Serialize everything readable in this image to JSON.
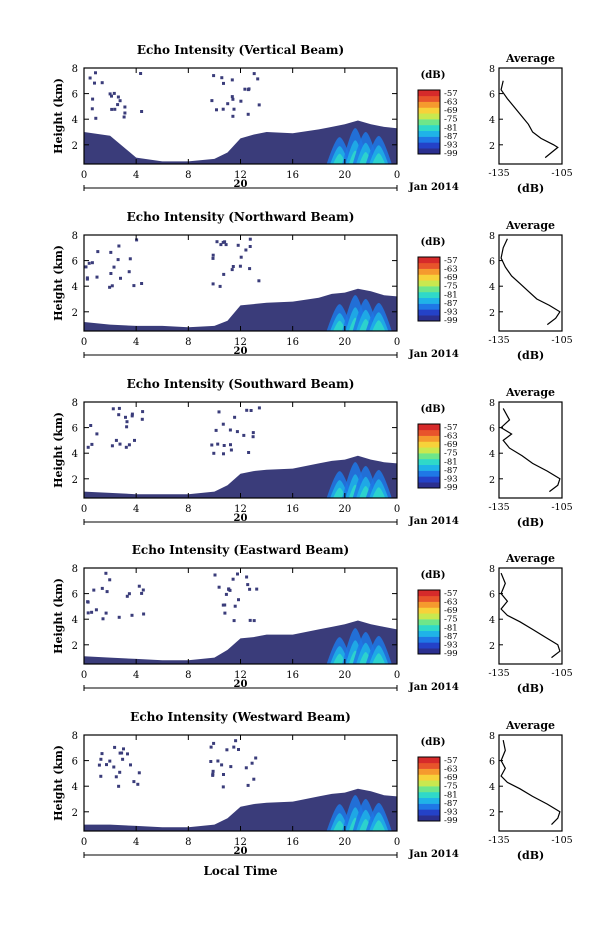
{
  "colorbar": {
    "unit": "(dB)",
    "ticks": [
      "-57",
      "-63",
      "-69",
      "-75",
      "-81",
      "-87",
      "-93",
      "-99"
    ],
    "colors": [
      "#2b2f8f",
      "#2442c8",
      "#1f78e6",
      "#1fb3e8",
      "#2fd9c9",
      "#6ee68a",
      "#c9e84f",
      "#f7d23a",
      "#f59a2e",
      "#e8542b",
      "#d62a2a"
    ]
  },
  "colors": {
    "background_fill": "#3a3c7a",
    "line": "#000000"
  },
  "panels": [
    {
      "title": "Echo Intensity (Vertical Beam)",
      "ylabel": "Height (km)",
      "yticks": [
        "2",
        "4",
        "6",
        "8"
      ],
      "xticks": [
        "0",
        "4",
        "8",
        "12",
        "16",
        "20",
        "0"
      ],
      "date_label": "20",
      "month_label": "Jan 2014",
      "average": {
        "title": "Average",
        "xlabel": "(dB)",
        "xticks": [
          "-135",
          "-105"
        ],
        "yticks": [
          "2",
          "4",
          "6",
          "8"
        ]
      }
    },
    {
      "title": "Echo Intensity (Northward Beam)",
      "ylabel": "Height (km)",
      "yticks": [
        "2",
        "4",
        "6",
        "8"
      ],
      "xticks": [
        "0",
        "4",
        "8",
        "12",
        "16",
        "20",
        "0"
      ],
      "date_label": "20",
      "month_label": "Jan 2014",
      "average": {
        "title": "Average",
        "xlabel": "(dB)",
        "xticks": [
          "-135",
          "-105"
        ],
        "yticks": [
          "2",
          "4",
          "6",
          "8"
        ]
      }
    },
    {
      "title": "Echo Intensity (Southward Beam)",
      "ylabel": "Height (km)",
      "yticks": [
        "2",
        "4",
        "6",
        "8"
      ],
      "xticks": [
        "0",
        "4",
        "8",
        "12",
        "16",
        "20",
        "0"
      ],
      "date_label": "20",
      "month_label": "Jan 2014",
      "average": {
        "title": "Average",
        "xlabel": "(dB)",
        "xticks": [
          "-135",
          "-105"
        ],
        "yticks": [
          "2",
          "4",
          "6",
          "8"
        ]
      }
    },
    {
      "title": "Echo Intensity (Eastward Beam)",
      "ylabel": "Height (km)",
      "yticks": [
        "2",
        "4",
        "6",
        "8"
      ],
      "xticks": [
        "0",
        "4",
        "8",
        "12",
        "16",
        "20",
        "0"
      ],
      "date_label": "20",
      "month_label": "Jan 2014",
      "average": {
        "title": "Average",
        "xlabel": "(dB)",
        "xticks": [
          "-135",
          "-105"
        ],
        "yticks": [
          "2",
          "4",
          "6",
          "8"
        ]
      }
    },
    {
      "title": "Echo Intensity (Westward Beam)",
      "ylabel": "Height (km)",
      "yticks": [
        "2",
        "4",
        "6",
        "8"
      ],
      "xticks": [
        "0",
        "4",
        "8",
        "12",
        "16",
        "20",
        "0"
      ],
      "date_label": "20",
      "month_label": "Jan 2014",
      "average": {
        "title": "Average",
        "xlabel": "(dB)",
        "xticks": [
          "-135",
          "-105"
        ],
        "yticks": [
          "2",
          "4",
          "6",
          "8"
        ]
      }
    }
  ],
  "xlabel": "Local Time",
  "chart_data": [
    {
      "type": "heatmap",
      "title": "Echo Intensity (Vertical Beam)",
      "xlabel": "Local Time",
      "ylabel": "Height (km)",
      "xlim": [
        0,
        24
      ],
      "ylim": [
        0.5,
        8
      ],
      "date": "20 Jan 2014",
      "colorbar_range_dB": [
        -99,
        -57
      ],
      "echo_top_km": [
        [
          0,
          3.0
        ],
        [
          2,
          2.7
        ],
        [
          4,
          1.0
        ],
        [
          6,
          0.7
        ],
        [
          8,
          0.7
        ],
        [
          10,
          0.9
        ],
        [
          11,
          1.4
        ],
        [
          12,
          2.5
        ],
        [
          13,
          2.8
        ],
        [
          14,
          3.0
        ],
        [
          16,
          2.9
        ],
        [
          18,
          3.2
        ],
        [
          19,
          3.4
        ],
        [
          20,
          3.6
        ],
        [
          21,
          3.9
        ],
        [
          22,
          3.6
        ],
        [
          23,
          3.4
        ],
        [
          24,
          3.3
        ]
      ]
    },
    {
      "type": "line",
      "title": "Average",
      "xlabel": "(dB)",
      "xlim": [
        -135,
        -105
      ],
      "ylim": [
        0.5,
        8
      ],
      "x": [
        -113,
        -110,
        -107,
        -109,
        -115,
        -119,
        -121,
        -124,
        -128,
        -131,
        -134,
        -133
      ],
      "y": [
        1.0,
        1.4,
        1.8,
        2.0,
        2.5,
        3.0,
        3.6,
        4.2,
        5.0,
        5.6,
        6.3,
        7.0
      ]
    },
    {
      "type": "heatmap",
      "title": "Echo Intensity (Northward Beam)",
      "xlabel": "Local Time",
      "ylabel": "Height (km)",
      "xlim": [
        0,
        24
      ],
      "ylim": [
        0.5,
        8
      ],
      "date": "20 Jan 2014",
      "colorbar_range_dB": [
        -99,
        -57
      ],
      "echo_top_km": [
        [
          0,
          1.2
        ],
        [
          2,
          1.0
        ],
        [
          4,
          0.9
        ],
        [
          6,
          0.9
        ],
        [
          8,
          0.8
        ],
        [
          10,
          0.9
        ],
        [
          11,
          1.3
        ],
        [
          12,
          2.5
        ],
        [
          13,
          2.6
        ],
        [
          14,
          2.7
        ],
        [
          16,
          2.8
        ],
        [
          18,
          3.1
        ],
        [
          19,
          3.4
        ],
        [
          20,
          3.5
        ],
        [
          21,
          3.8
        ],
        [
          22,
          3.6
        ],
        [
          23,
          3.3
        ],
        [
          24,
          3.2
        ]
      ]
    },
    {
      "type": "line",
      "title": "Average",
      "xlabel": "(dB)",
      "xlim": [
        -135,
        -105
      ],
      "ylim": [
        0.5,
        8
      ],
      "x": [
        -112,
        -108,
        -106,
        -111,
        -117,
        -121,
        -125,
        -129,
        -132,
        -134,
        -133,
        -131
      ],
      "y": [
        1.0,
        1.5,
        2.0,
        2.5,
        3.0,
        3.6,
        4.2,
        4.8,
        5.5,
        6.2,
        7.0,
        7.7
      ]
    },
    {
      "type": "heatmap",
      "title": "Echo Intensity (Southward Beam)",
      "xlabel": "Local Time",
      "ylabel": "Height (km)",
      "xlim": [
        0,
        24
      ],
      "ylim": [
        0.5,
        8
      ],
      "date": "20 Jan 2014",
      "colorbar_range_dB": [
        -99,
        -57
      ],
      "echo_top_km": [
        [
          0,
          1.0
        ],
        [
          2,
          0.9
        ],
        [
          4,
          0.8
        ],
        [
          6,
          0.8
        ],
        [
          8,
          0.8
        ],
        [
          10,
          1.0
        ],
        [
          11,
          1.5
        ],
        [
          12,
          2.4
        ],
        [
          13,
          2.6
        ],
        [
          14,
          2.7
        ],
        [
          16,
          2.8
        ],
        [
          18,
          3.2
        ],
        [
          19,
          3.4
        ],
        [
          20,
          3.5
        ],
        [
          21,
          3.8
        ],
        [
          22,
          3.5
        ],
        [
          23,
          3.3
        ],
        [
          24,
          3.2
        ]
      ]
    },
    {
      "type": "line",
      "title": "Average",
      "xlabel": "(dB)",
      "xlim": [
        -135,
        -105
      ],
      "ylim": [
        0.5,
        8
      ],
      "x": [
        -111,
        -107,
        -106,
        -112,
        -119,
        -124,
        -130,
        -133,
        -129,
        -134,
        -130,
        -133
      ],
      "y": [
        1.0,
        1.5,
        2.0,
        2.6,
        3.2,
        3.8,
        4.4,
        5.0,
        5.5,
        6.0,
        6.6,
        7.5
      ]
    },
    {
      "type": "heatmap",
      "title": "Echo Intensity (Eastward Beam)",
      "xlabel": "Local Time",
      "ylabel": "Height (km)",
      "xlim": [
        0,
        24
      ],
      "ylim": [
        0.5,
        8
      ],
      "date": "20 Jan 2014",
      "colorbar_range_dB": [
        -99,
        -57
      ],
      "echo_top_km": [
        [
          0,
          1.1
        ],
        [
          2,
          1.0
        ],
        [
          4,
          0.9
        ],
        [
          6,
          0.8
        ],
        [
          8,
          0.8
        ],
        [
          10,
          1.0
        ],
        [
          11,
          1.6
        ],
        [
          12,
          2.5
        ],
        [
          13,
          2.6
        ],
        [
          14,
          2.8
        ],
        [
          16,
          2.8
        ],
        [
          18,
          3.2
        ],
        [
          19,
          3.4
        ],
        [
          20,
          3.6
        ],
        [
          21,
          3.9
        ],
        [
          22,
          3.6
        ],
        [
          23,
          3.4
        ],
        [
          24,
          3.2
        ]
      ]
    },
    {
      "type": "line",
      "title": "Average",
      "xlabel": "(dB)",
      "xlim": [
        -135,
        -105
      ],
      "ylim": [
        0.5,
        8
      ],
      "x": [
        -110,
        -106,
        -107,
        -113,
        -119,
        -125,
        -131,
        -134,
        -131,
        -134,
        -132,
        -134
      ],
      "y": [
        1.0,
        1.5,
        2.0,
        2.6,
        3.2,
        3.8,
        4.3,
        4.8,
        5.4,
        6.0,
        6.8,
        7.6
      ]
    },
    {
      "type": "heatmap",
      "title": "Echo Intensity (Westward Beam)",
      "xlabel": "Local Time",
      "ylabel": "Height (km)",
      "xlim": [
        0,
        24
      ],
      "ylim": [
        0.5,
        8
      ],
      "date": "20 Jan 2014",
      "colorbar_range_dB": [
        -99,
        -57
      ],
      "echo_top_km": [
        [
          0,
          1.0
        ],
        [
          2,
          1.0
        ],
        [
          4,
          0.9
        ],
        [
          6,
          0.8
        ],
        [
          8,
          0.8
        ],
        [
          10,
          1.0
        ],
        [
          11,
          1.5
        ],
        [
          12,
          2.4
        ],
        [
          13,
          2.6
        ],
        [
          14,
          2.7
        ],
        [
          16,
          2.8
        ],
        [
          18,
          3.2
        ],
        [
          19,
          3.4
        ],
        [
          20,
          3.5
        ],
        [
          21,
          3.8
        ],
        [
          22,
          3.6
        ],
        [
          23,
          3.3
        ],
        [
          24,
          3.2
        ]
      ]
    },
    {
      "type": "line",
      "title": "Average",
      "xlabel": "(dB)",
      "xlim": [
        -135,
        -105
      ],
      "ylim": [
        0.5,
        8
      ],
      "x": [
        -110,
        -107,
        -106,
        -112,
        -119,
        -125,
        -131,
        -134,
        -132,
        -134,
        -132,
        -133
      ],
      "y": [
        1.0,
        1.5,
        2.0,
        2.6,
        3.2,
        3.8,
        4.3,
        4.8,
        5.4,
        6.0,
        6.8,
        7.6
      ]
    }
  ]
}
